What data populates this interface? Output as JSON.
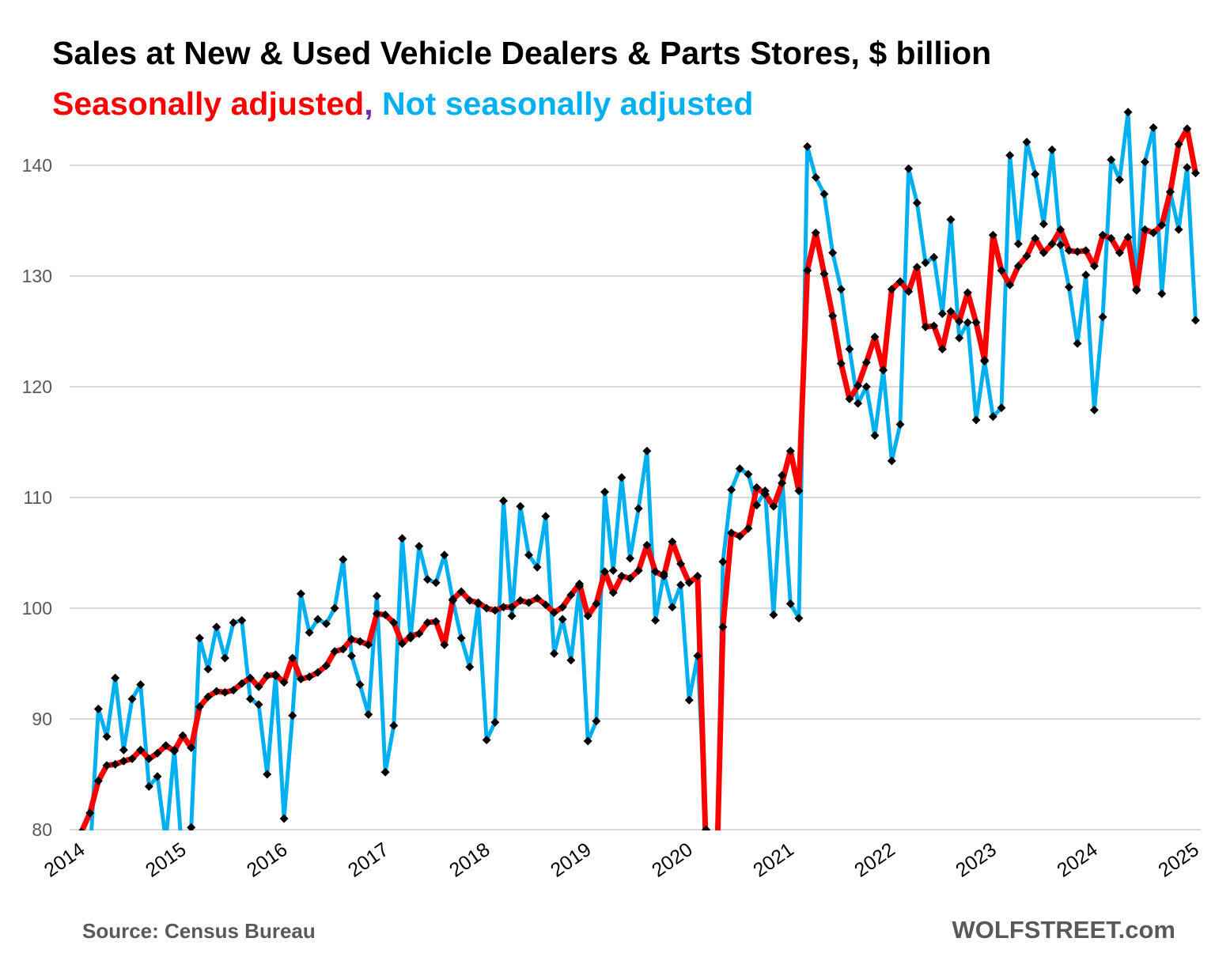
{
  "chart_data": {
    "type": "line",
    "title": "Sales at New & Used Vehicle Dealers & Parts Stores, $ billion",
    "subtitle": {
      "part1": "Seasonally adjusted",
      "separator": ",",
      "part2": "Not seasonally adjusted"
    },
    "x_start": "2014-01",
    "frequency": "monthly",
    "x_tick_labels": [
      "2014",
      "2015",
      "2016",
      "2017",
      "2018",
      "2019",
      "2020",
      "2021",
      "2022",
      "2023",
      "2024",
      "2025"
    ],
    "y_tick_labels": [
      "80",
      "90",
      "100",
      "110",
      "120",
      "130",
      "140"
    ],
    "ylim": [
      80,
      145
    ],
    "grid": "horizontal",
    "marker": "black diamond",
    "series": [
      {
        "name": "Not seasonally adjusted",
        "color": "#00B0F0",
        "values": [
          74,
          77.5,
          90.9,
          88.4,
          93.7,
          87.2,
          91.8,
          93.1,
          83.9,
          84.8,
          79,
          87.2,
          77,
          80.2,
          97.3,
          94.5,
          98.3,
          95.5,
          98.7,
          98.9,
          91.8,
          91.3,
          85.0,
          93.9,
          81.0,
          90.3,
          101.3,
          97.8,
          99.0,
          98.6,
          100.0,
          104.4,
          95.7,
          93.1,
          90.4,
          101.1,
          85.2,
          89.4,
          106.3,
          97.3,
          105.6,
          102.6,
          102.3,
          104.8,
          100.7,
          97.3,
          94.7,
          100.4,
          88.1,
          89.7,
          109.7,
          99.3,
          109.2,
          104.8,
          103.7,
          108.3,
          95.9,
          99.0,
          95.3,
          102.0,
          88.0,
          89.8,
          110.5,
          103.4,
          111.8,
          104.5,
          109.0,
          114.2,
          98.9,
          103.1,
          100.1,
          102.1,
          91.7,
          95.7,
          80.0,
          66,
          104.2,
          110.7,
          112.6,
          112.1,
          109.3,
          110.6,
          99.4,
          112.0,
          100.4,
          99.1,
          141.7,
          138.9,
          137.4,
          132.1,
          128.8,
          123.4,
          118.5,
          120.0,
          115.6,
          121.5,
          113.3,
          116.6,
          139.7,
          136.6,
          131.2,
          131.7,
          126.6,
          135.1,
          124.4,
          125.8,
          117.0,
          122.3,
          117.3,
          118.1,
          140.9,
          132.9,
          142.1,
          139.2,
          134.7,
          141.4,
          132.8,
          129.0,
          123.9,
          130.1,
          117.9,
          126.3,
          140.5,
          138.7,
          144.8,
          128.7,
          140.3,
          143.4,
          128.4,
          137.6,
          134.2,
          139.8,
          126.0
        ]
      },
      {
        "name": "Seasonally adjusted",
        "color": "#FF0000",
        "values": [
          79.8,
          81.5,
          84.4,
          85.8,
          85.9,
          86.2,
          86.4,
          87.2,
          86.4,
          86.9,
          87.6,
          87.1,
          88.5,
          87.4,
          91.1,
          92.0,
          92.5,
          92.4,
          92.6,
          93.2,
          93.7,
          92.9,
          93.9,
          94.0,
          93.3,
          95.5,
          93.6,
          93.8,
          94.2,
          94.8,
          96.1,
          96.3,
          97.2,
          97.0,
          96.7,
          99.5,
          99.4,
          98.7,
          96.8,
          97.5,
          97.7,
          98.7,
          98.8,
          96.7,
          100.8,
          101.5,
          100.7,
          100.5,
          100.0,
          99.8,
          100.1,
          100.1,
          100.7,
          100.5,
          100.9,
          100.3,
          99.6,
          100.1,
          101.2,
          102.2,
          99.3,
          100.4,
          103.3,
          101.4,
          102.9,
          102.7,
          103.4,
          105.7,
          103.3,
          102.9,
          106.0,
          104.0,
          102.3,
          102.9,
          78,
          68,
          98.3,
          106.8,
          106.5,
          107.2,
          110.9,
          110.3,
          109.2,
          111.3,
          114.2,
          110.6,
          130.5,
          133.9,
          130.2,
          126.4,
          122.1,
          118.9,
          120.1,
          122.2,
          124.5,
          121.5,
          128.8,
          129.5,
          128.6,
          130.8,
          125.4,
          125.5,
          123.4,
          126.8,
          125.9,
          128.5,
          125.8,
          122.4,
          133.7,
          130.5,
          129.2,
          130.9,
          131.8,
          133.4,
          132.1,
          132.9,
          134.2,
          132.3,
          132.2,
          132.3,
          130.9,
          133.7,
          133.4,
          132.1,
          133.5,
          128.8,
          134.2,
          133.9,
          134.6,
          137.6,
          141.9,
          143.3,
          139.3
        ]
      }
    ]
  },
  "footer": {
    "source": "Source: Census Bureau",
    "brand": "WOLFSTREET.com"
  },
  "colors": {
    "seasonally_adjusted": "#FF0000",
    "not_seasonally_adjusted": "#00B0F0",
    "separator": "#7030A0"
  }
}
